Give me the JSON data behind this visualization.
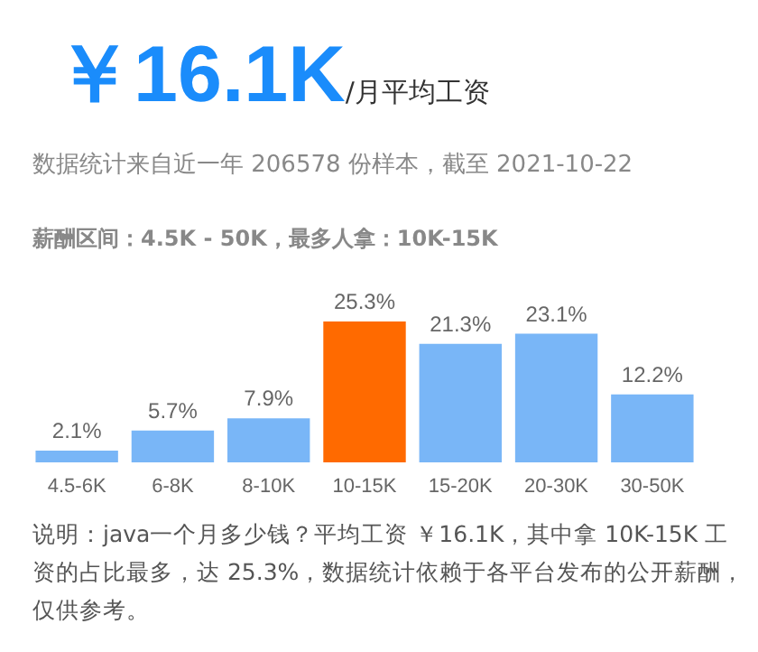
{
  "chart_data": {
    "type": "bar",
    "title": "￥16.1K",
    "subtitle": "/月平均工资",
    "annotations": [
      "数据统计来自近一年 206578 份样本，截至 2021-10-22",
      "薪酬区间：4.5K - 50K，最多人拿：10K-15K",
      "说明：java一个月多少钱？平均工资 ￥16.1K，其中拿 10K-15K 工资的占比最多，达 25.3%，数据统计依赖于各平台发布的公开薪酬，仅供参考。"
    ],
    "categories": [
      "4.5-6K",
      "6-8K",
      "8-10K",
      "10-15K",
      "15-20K",
      "20-30K",
      "30-50K"
    ],
    "values": [
      2.1,
      5.7,
      7.9,
      25.3,
      21.3,
      23.1,
      12.2
    ],
    "colors": [
      "#79b6f7",
      "#79b6f7",
      "#79b6f7",
      "#ff6a00",
      "#79b6f7",
      "#79b6f7",
      "#79b6f7"
    ],
    "value_labels": [
      "2.1%",
      "5.7%",
      "7.9%",
      "25.3%",
      "21.3%",
      "23.1%",
      "12.2%"
    ]
  }
}
